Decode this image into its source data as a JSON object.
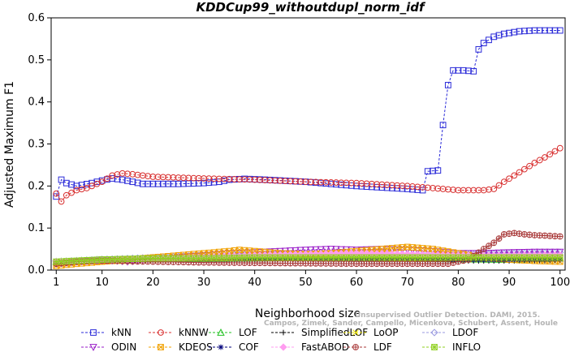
{
  "chart_data": {
    "type": "line",
    "title": "KDDCup99_withoutdupl_norm_idf",
    "xlabel": "Neighborhood size",
    "ylabel": "Adjusted Maximum F1",
    "xlim": [
      0,
      101
    ],
    "ylim": [
      0,
      0.6
    ],
    "xticks": [
      1,
      10,
      20,
      30,
      40,
      50,
      60,
      70,
      80,
      90,
      100
    ],
    "yticks": [
      0.0,
      0.1,
      0.2,
      0.3,
      0.4,
      0.5,
      0.6
    ],
    "grid": false,
    "legend_position": "bottom",
    "watermark": [
      "Campos, Zimek, Sander, Campello, Micenkova, Schubert, Assent, Houle",
      "Unsupervised Outlier Detection. DAMI, 2015."
    ],
    "series": [
      {
        "name": "kNN",
        "color": "#2a2ad8",
        "marker": "square",
        "points": [
          [
            1,
            0.175
          ],
          [
            2,
            0.215
          ],
          [
            3,
            0.207
          ],
          [
            5,
            0.2
          ],
          [
            8,
            0.207
          ],
          [
            10,
            0.213
          ],
          [
            12,
            0.218
          ],
          [
            14,
            0.215
          ],
          [
            16,
            0.21
          ],
          [
            18,
            0.205
          ],
          [
            20,
            0.205
          ],
          [
            25,
            0.205
          ],
          [
            30,
            0.207
          ],
          [
            33,
            0.21
          ],
          [
            35,
            0.215
          ],
          [
            38,
            0.217
          ],
          [
            42,
            0.215
          ],
          [
            50,
            0.21
          ],
          [
            60,
            0.2
          ],
          [
            70,
            0.193
          ],
          [
            73,
            0.19
          ],
          [
            74,
            0.235
          ],
          [
            76,
            0.237
          ],
          [
            77,
            0.345
          ],
          [
            78,
            0.44
          ],
          [
            79,
            0.475
          ],
          [
            81,
            0.475
          ],
          [
            83,
            0.473
          ],
          [
            84,
            0.525
          ],
          [
            85,
            0.54
          ],
          [
            87,
            0.555
          ],
          [
            89,
            0.562
          ],
          [
            92,
            0.568
          ],
          [
            95,
            0.57
          ],
          [
            100,
            0.57
          ]
        ]
      },
      {
        "name": "kNNW",
        "color": "#d83030",
        "marker": "circle",
        "points": [
          [
            1,
            0.182
          ],
          [
            2,
            0.163
          ],
          [
            3,
            0.178
          ],
          [
            5,
            0.19
          ],
          [
            7,
            0.195
          ],
          [
            10,
            0.21
          ],
          [
            12,
            0.225
          ],
          [
            14,
            0.23
          ],
          [
            16,
            0.228
          ],
          [
            20,
            0.222
          ],
          [
            30,
            0.218
          ],
          [
            40,
            0.215
          ],
          [
            50,
            0.21
          ],
          [
            60,
            0.207
          ],
          [
            70,
            0.2
          ],
          [
            75,
            0.195
          ],
          [
            80,
            0.19
          ],
          [
            85,
            0.19
          ],
          [
            87,
            0.193
          ],
          [
            89,
            0.21
          ],
          [
            91,
            0.225
          ],
          [
            93,
            0.24
          ],
          [
            95,
            0.255
          ],
          [
            97,
            0.268
          ],
          [
            100,
            0.29
          ]
        ]
      },
      {
        "name": "LOF",
        "color": "#20c020",
        "marker": "triangle-up",
        "points": [
          [
            1,
            0.02
          ],
          [
            5,
            0.022
          ],
          [
            10,
            0.025
          ],
          [
            20,
            0.026
          ],
          [
            30,
            0.027
          ],
          [
            40,
            0.028
          ],
          [
            50,
            0.03
          ],
          [
            60,
            0.03
          ],
          [
            70,
            0.028
          ],
          [
            80,
            0.026
          ],
          [
            90,
            0.025
          ],
          [
            100,
            0.028
          ]
        ]
      },
      {
        "name": "SimplifiedLOF",
        "color": "#000000",
        "marker": "plus",
        "points": [
          [
            1,
            0.018
          ],
          [
            10,
            0.022
          ],
          [
            20,
            0.024
          ],
          [
            30,
            0.025
          ],
          [
            40,
            0.025
          ],
          [
            50,
            0.024
          ],
          [
            60,
            0.023
          ],
          [
            70,
            0.022
          ],
          [
            80,
            0.022
          ],
          [
            90,
            0.022
          ],
          [
            100,
            0.023
          ]
        ]
      },
      {
        "name": "LoOP",
        "color": "#e8e000",
        "marker": "x",
        "points": [
          [
            1,
            0.015
          ],
          [
            10,
            0.02
          ],
          [
            20,
            0.023
          ],
          [
            30,
            0.025
          ],
          [
            40,
            0.026
          ],
          [
            50,
            0.027
          ],
          [
            60,
            0.026
          ],
          [
            70,
            0.026
          ],
          [
            80,
            0.025
          ],
          [
            90,
            0.026
          ],
          [
            100,
            0.028
          ]
        ]
      },
      {
        "name": "LDOF",
        "color": "#9a9ae0",
        "marker": "diamond",
        "points": [
          [
            1,
            0.02
          ],
          [
            10,
            0.025
          ],
          [
            20,
            0.03
          ],
          [
            30,
            0.035
          ],
          [
            40,
            0.038
          ],
          [
            50,
            0.04
          ],
          [
            60,
            0.04
          ],
          [
            70,
            0.038
          ],
          [
            80,
            0.037
          ],
          [
            90,
            0.04
          ],
          [
            100,
            0.042
          ]
        ]
      },
      {
        "name": "ODIN",
        "color": "#9a1ec8",
        "marker": "triangle-down",
        "points": [
          [
            1,
            0.015
          ],
          [
            5,
            0.02
          ],
          [
            10,
            0.025
          ],
          [
            15,
            0.02
          ],
          [
            20,
            0.025
          ],
          [
            25,
            0.03
          ],
          [
            30,
            0.035
          ],
          [
            35,
            0.04
          ],
          [
            40,
            0.042
          ],
          [
            45,
            0.045
          ],
          [
            50,
            0.048
          ],
          [
            55,
            0.05
          ],
          [
            60,
            0.048
          ],
          [
            65,
            0.05
          ],
          [
            70,
            0.048
          ],
          [
            75,
            0.045
          ],
          [
            80,
            0.04
          ],
          [
            85,
            0.04
          ],
          [
            90,
            0.042
          ],
          [
            95,
            0.043
          ],
          [
            100,
            0.043
          ]
        ]
      },
      {
        "name": "KDEOS",
        "color": "#f0a000",
        "marker": "square-x",
        "points": [
          [
            1,
            0.01
          ],
          [
            5,
            0.015
          ],
          [
            10,
            0.02
          ],
          [
            15,
            0.025
          ],
          [
            20,
            0.03
          ],
          [
            25,
            0.035
          ],
          [
            30,
            0.04
          ],
          [
            35,
            0.045
          ],
          [
            37,
            0.048
          ],
          [
            40,
            0.045
          ],
          [
            45,
            0.04
          ],
          [
            50,
            0.038
          ],
          [
            55,
            0.04
          ],
          [
            60,
            0.045
          ],
          [
            65,
            0.05
          ],
          [
            70,
            0.055
          ],
          [
            75,
            0.05
          ],
          [
            80,
            0.04
          ],
          [
            85,
            0.03
          ],
          [
            90,
            0.025
          ],
          [
            95,
            0.022
          ],
          [
            100,
            0.02
          ]
        ]
      },
      {
        "name": "COF",
        "color": "#00007a",
        "marker": "asterisk",
        "points": [
          [
            1,
            0.02
          ],
          [
            10,
            0.022
          ],
          [
            20,
            0.024
          ],
          [
            30,
            0.025
          ],
          [
            40,
            0.026
          ],
          [
            50,
            0.026
          ],
          [
            60,
            0.025
          ],
          [
            70,
            0.024
          ],
          [
            80,
            0.024
          ],
          [
            90,
            0.025
          ],
          [
            100,
            0.026
          ]
        ]
      },
      {
        "name": "FastABOD",
        "color": "#ff9cf0",
        "marker": "diamond-filled",
        "points": [
          [
            1,
            0.02
          ],
          [
            10,
            0.023
          ],
          [
            20,
            0.026
          ],
          [
            30,
            0.03
          ],
          [
            40,
            0.035
          ],
          [
            50,
            0.038
          ],
          [
            60,
            0.04
          ],
          [
            70,
            0.038
          ],
          [
            80,
            0.035
          ],
          [
            90,
            0.035
          ],
          [
            100,
            0.036
          ]
        ]
      },
      {
        "name": "LDF",
        "color": "#a83838",
        "marker": "circle-plus",
        "points": [
          [
            1,
            0.015
          ],
          [
            5,
            0.02
          ],
          [
            10,
            0.022
          ],
          [
            20,
            0.02
          ],
          [
            30,
            0.018
          ],
          [
            40,
            0.017
          ],
          [
            50,
            0.016
          ],
          [
            60,
            0.015
          ],
          [
            70,
            0.015
          ],
          [
            78,
            0.015
          ],
          [
            82,
            0.025
          ],
          [
            85,
            0.05
          ],
          [
            87,
            0.065
          ],
          [
            89,
            0.085
          ],
          [
            91,
            0.088
          ],
          [
            93,
            0.085
          ],
          [
            95,
            0.083
          ],
          [
            97,
            0.082
          ],
          [
            100,
            0.08
          ]
        ]
      },
      {
        "name": "INFLO",
        "color": "#90d020",
        "marker": "square-star",
        "points": [
          [
            1,
            0.02
          ],
          [
            10,
            0.025
          ],
          [
            20,
            0.028
          ],
          [
            30,
            0.028
          ],
          [
            40,
            0.03
          ],
          [
            50,
            0.03
          ],
          [
            60,
            0.03
          ],
          [
            70,
            0.03
          ],
          [
            80,
            0.03
          ],
          [
            90,
            0.03
          ],
          [
            100,
            0.03
          ]
        ]
      }
    ]
  }
}
